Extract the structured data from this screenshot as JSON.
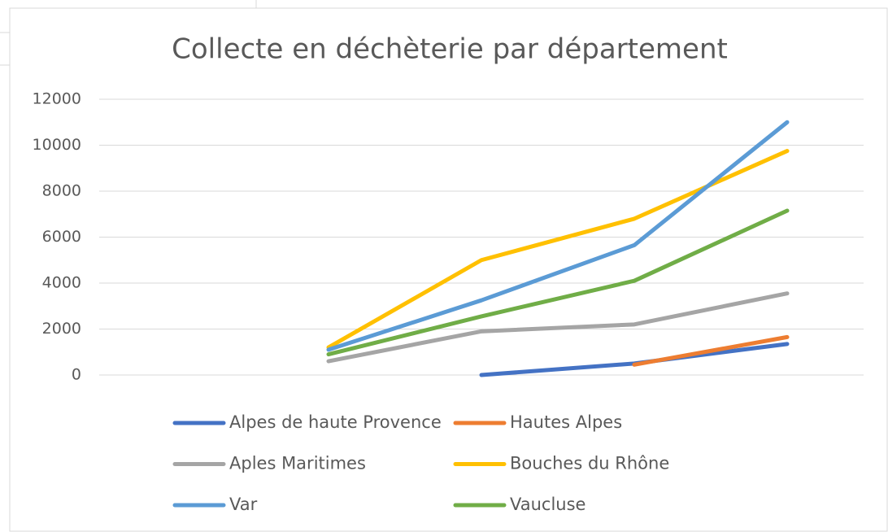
{
  "chart_data": {
    "type": "line",
    "title": "Collecte en déchèterie par département",
    "categories": [
      null,
      null,
      null,
      null,
      null
    ],
    "series": [
      {
        "name": "Alpes de haute Provence",
        "color": "#4472c4",
        "values": [
          null,
          null,
          0,
          500,
          1350
        ]
      },
      {
        "name": "Hautes Alpes",
        "color": "#ed7d31",
        "values": [
          null,
          null,
          null,
          450,
          1650
        ]
      },
      {
        "name": "Aples Maritimes",
        "color": "#a5a5a5",
        "values": [
          null,
          600,
          1900,
          2200,
          3550
        ]
      },
      {
        "name": "Bouches du Rhône",
        "color": "#ffc000",
        "values": [
          null,
          1200,
          5000,
          6800,
          9750
        ]
      },
      {
        "name": "Var",
        "color": "#5b9bd5",
        "values": [
          null,
          1100,
          3250,
          5650,
          11000
        ]
      },
      {
        "name": "Vaucluse",
        "color": "#70ad47",
        "values": [
          null,
          900,
          2550,
          4100,
          7150
        ]
      }
    ],
    "ylim": [
      0,
      12000
    ],
    "yticks": [
      0,
      2000,
      4000,
      6000,
      8000,
      10000,
      12000
    ],
    "grid": true,
    "legend": "bottom"
  }
}
